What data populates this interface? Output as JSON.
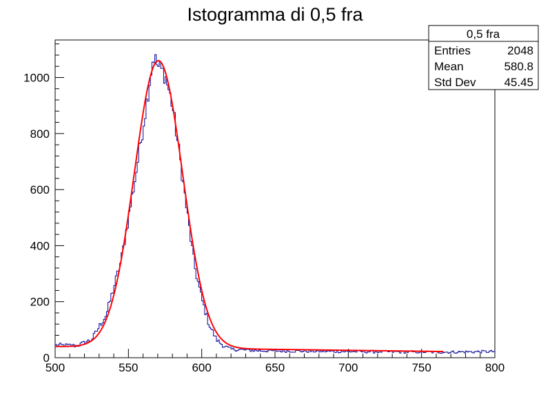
{
  "chart_data": {
    "type": "histogram",
    "title": "Istogramma di 0,5 fra",
    "xlabel": "",
    "ylabel": "",
    "xlim": [
      500,
      800
    ],
    "ylim": [
      0,
      1134
    ],
    "x_ticks": [
      500,
      550,
      600,
      650,
      700,
      750,
      800
    ],
    "y_ticks": [
      0,
      200,
      400,
      600,
      800,
      1000
    ],
    "bin_width": 1,
    "histogram_color": "#000099",
    "fit_color": "#ff0000",
    "fit_range": [
      500,
      765
    ],
    "fit": {
      "gauss_amplitude": 1025,
      "gauss_mean": 570.5,
      "gauss_sigma": 16.5,
      "background_at_500": 40,
      "background_at_765": 22
    },
    "histogram_profile": [
      {
        "x": 500,
        "y": 45
      },
      {
        "x": 515,
        "y": 43
      },
      {
        "x": 525,
        "y": 65
      },
      {
        "x": 535,
        "y": 155
      },
      {
        "x": 545,
        "y": 345
      },
      {
        "x": 555,
        "y": 650
      },
      {
        "x": 563,
        "y": 930
      },
      {
        "x": 567,
        "y": 1080
      },
      {
        "x": 570,
        "y": 1040
      },
      {
        "x": 575,
        "y": 1010
      },
      {
        "x": 580,
        "y": 900
      },
      {
        "x": 585,
        "y": 720
      },
      {
        "x": 590,
        "y": 520
      },
      {
        "x": 595,
        "y": 330
      },
      {
        "x": 600,
        "y": 210
      },
      {
        "x": 605,
        "y": 120
      },
      {
        "x": 610,
        "y": 65
      },
      {
        "x": 615,
        "y": 42
      },
      {
        "x": 620,
        "y": 30
      },
      {
        "x": 640,
        "y": 25
      },
      {
        "x": 700,
        "y": 22
      },
      {
        "x": 765,
        "y": 20
      },
      {
        "x": 800,
        "y": 22
      }
    ],
    "stats_box": {
      "name": "0,5 fra",
      "entries_label": "Entries",
      "entries_value": "2048",
      "mean_label": "Mean",
      "mean_value": "580.8",
      "stddev_label": "Std Dev",
      "stddev_value": "45.45"
    }
  }
}
